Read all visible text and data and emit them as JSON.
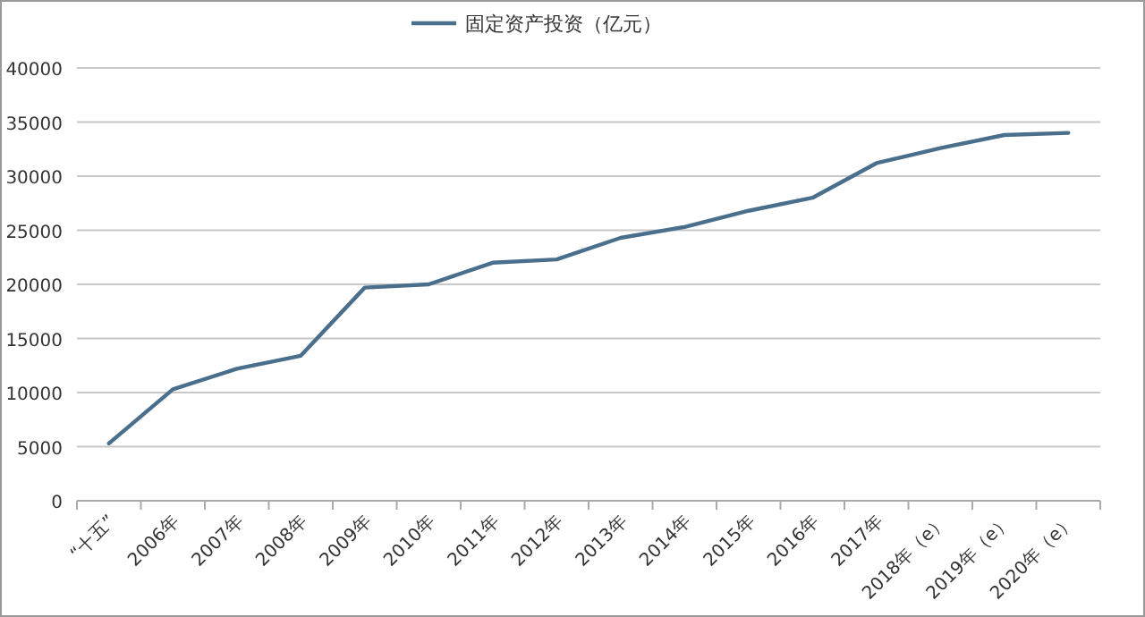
{
  "chart_data": {
    "type": "line",
    "categories": [
      "“十五”",
      "2006年",
      "2007年",
      "2008年",
      "2009年",
      "2010年",
      "2011年",
      "2012年",
      "2013年",
      "2014年",
      "2015年",
      "2016年",
      "2017年",
      "2018年（e）",
      "2019年（e）",
      "2020年（e）"
    ],
    "series": [
      {
        "name": "固定资产投资（亿元）",
        "color": "#4a6f8c",
        "values": [
          5300,
          10300,
          12200,
          13400,
          19700,
          20000,
          22000,
          22300,
          24300,
          25300,
          26800,
          28000,
          31200,
          32600,
          33800,
          34000
        ]
      }
    ],
    "ylim": [
      0,
      40000
    ],
    "yticks": [
      0,
      5000,
      10000,
      15000,
      20000,
      25000,
      30000,
      35000,
      40000
    ],
    "grid": "y",
    "legend": "top",
    "marker": "none",
    "line_style": "solid"
  }
}
